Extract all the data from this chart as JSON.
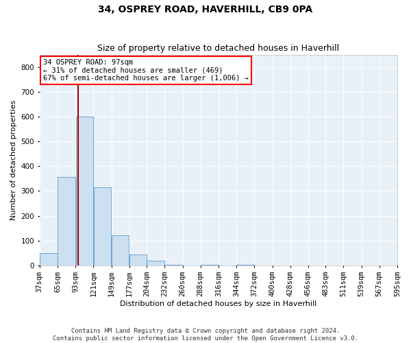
{
  "title_line1": "34, OSPREY ROAD, HAVERHILL, CB9 0PA",
  "title_line2": "Size of property relative to detached houses in Haverhill",
  "xlabel": "Distribution of detached houses by size in Haverhill",
  "ylabel": "Number of detached properties",
  "footnote1": "Contains HM Land Registry data © Crown copyright and database right 2024.",
  "footnote2": "Contains public sector information licensed under the Open Government Licence v3.0.",
  "annotation_line1": "34 OSPREY ROAD: 97sqm",
  "annotation_line2": "← 31% of detached houses are smaller (469)",
  "annotation_line3": "67% of semi-detached houses are larger (1,006) →",
  "bar_color": "#cce0f0",
  "bar_edge_color": "#5b9bd5",
  "vline_color": "#aa0000",
  "background_color": "#e8f0f8",
  "bin_edges": [
    37,
    65,
    93,
    121,
    149,
    177,
    204,
    232,
    260,
    288,
    316,
    344,
    372,
    400,
    428,
    456,
    483,
    511,
    539,
    567,
    595
  ],
  "bin_labels": [
    "37sqm",
    "65sqm",
    "93sqm",
    "121sqm",
    "149sqm",
    "177sqm",
    "204sqm",
    "232sqm",
    "260sqm",
    "288sqm",
    "316sqm",
    "344sqm",
    "372sqm",
    "400sqm",
    "428sqm",
    "456sqm",
    "483sqm",
    "511sqm",
    "539sqm",
    "567sqm",
    "595sqm"
  ],
  "bar_heights": [
    50,
    355,
    600,
    315,
    120,
    45,
    18,
    3,
    0,
    3,
    0,
    3,
    0,
    0,
    0,
    0,
    0,
    0,
    0,
    0
  ],
  "ylim": [
    0,
    850
  ],
  "yticks": [
    0,
    100,
    200,
    300,
    400,
    500,
    600,
    700,
    800
  ],
  "vline_x": 97,
  "title_fontsize": 10,
  "subtitle_fontsize": 9,
  "axis_label_fontsize": 8,
  "tick_fontsize": 7.5,
  "annotation_fontsize": 7.5,
  "footnote_fontsize": 6.5
}
